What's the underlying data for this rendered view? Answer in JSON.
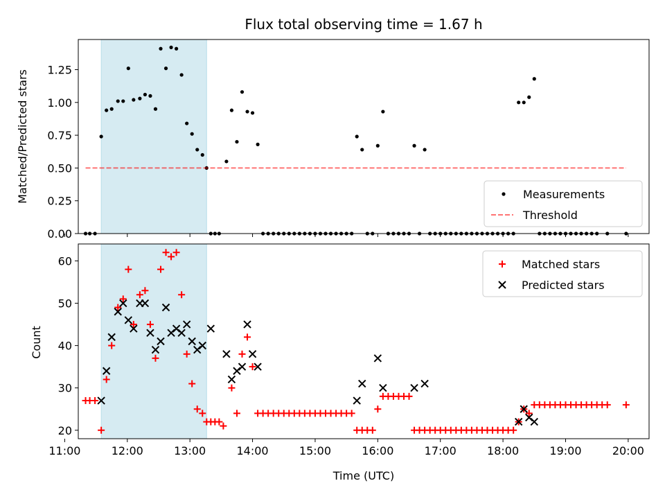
{
  "chart_data": [
    {
      "type": "scatter",
      "title": "Flux total observing time = 1.67 h",
      "xlabel": "",
      "ylabel": "Matched/Predicted stars",
      "xlim": [
        "11:13",
        "20:20"
      ],
      "ylim": [
        0,
        1.48
      ],
      "x_ticks": [
        "11:00",
        "12:00",
        "13:00",
        "14:00",
        "15:00",
        "16:00",
        "17:00",
        "18:00",
        "19:00",
        "20:00"
      ],
      "y_ticks": [
        "0.00",
        "0.25",
        "0.50",
        "0.75",
        "1.00",
        "1.25"
      ],
      "shaded_interval": {
        "x0": "11:35",
        "x1": "13:16",
        "color": "#add8e6"
      },
      "legend": {
        "position": "lower-right"
      },
      "series": [
        {
          "name": "Measurements",
          "color": "#000000",
          "marker": "dot",
          "points": [
            [
              "11:20",
              0
            ],
            [
              "11:24",
              0
            ],
            [
              "11:29",
              0
            ],
            [
              "11:35",
              0.74
            ],
            [
              "11:40",
              0.94
            ],
            [
              "11:45",
              0.95
            ],
            [
              "11:51",
              1.01
            ],
            [
              "11:56",
              1.01
            ],
            [
              "12:01",
              1.26
            ],
            [
              "12:06",
              1.02
            ],
            [
              "12:12",
              1.03
            ],
            [
              "12:17",
              1.06
            ],
            [
              "12:22",
              1.05
            ],
            [
              "12:27",
              0.95
            ],
            [
              "12:32",
              1.41
            ],
            [
              "12:37",
              1.26
            ],
            [
              "12:42",
              1.42
            ],
            [
              "12:47",
              1.41
            ],
            [
              "12:52",
              1.21
            ],
            [
              "12:57",
              0.84
            ],
            [
              "13:02",
              0.76
            ],
            [
              "13:07",
              0.64
            ],
            [
              "13:12",
              0.6
            ],
            [
              "13:16",
              0.5
            ],
            [
              "13:20",
              0
            ],
            [
              "13:24",
              0
            ],
            [
              "13:28",
              0
            ],
            [
              "13:35",
              0.55
            ],
            [
              "13:40",
              0.94
            ],
            [
              "13:45",
              0.7
            ],
            [
              "13:50",
              1.08
            ],
            [
              "13:55",
              0.93
            ],
            [
              "14:00",
              0.92
            ],
            [
              "14:05",
              0.68
            ],
            [
              "14:10",
              0
            ],
            [
              "14:15",
              0
            ],
            [
              "14:20",
              0
            ],
            [
              "14:25",
              0
            ],
            [
              "14:30",
              0
            ],
            [
              "14:35",
              0
            ],
            [
              "14:40",
              0
            ],
            [
              "14:45",
              0
            ],
            [
              "14:50",
              0
            ],
            [
              "14:55",
              0
            ],
            [
              "15:00",
              0
            ],
            [
              "15:05",
              0
            ],
            [
              "15:10",
              0
            ],
            [
              "15:15",
              0
            ],
            [
              "15:20",
              0
            ],
            [
              "15:25",
              0
            ],
            [
              "15:30",
              0
            ],
            [
              "15:35",
              0
            ],
            [
              "15:40",
              0.74
            ],
            [
              "15:45",
              0.64
            ],
            [
              "15:50",
              0
            ],
            [
              "15:55",
              0
            ],
            [
              "16:00",
              0.67
            ],
            [
              "16:05",
              0.93
            ],
            [
              "16:10",
              0
            ],
            [
              "16:15",
              0
            ],
            [
              "16:20",
              0
            ],
            [
              "16:25",
              0
            ],
            [
              "16:30",
              0
            ],
            [
              "16:35",
              0.67
            ],
            [
              "16:40",
              0
            ],
            [
              "16:45",
              0.64
            ],
            [
              "16:50",
              0
            ],
            [
              "16:55",
              0
            ],
            [
              "17:00",
              0
            ],
            [
              "17:05",
              0
            ],
            [
              "17:10",
              0
            ],
            [
              "17:15",
              0
            ],
            [
              "17:20",
              0
            ],
            [
              "17:25",
              0
            ],
            [
              "17:30",
              0
            ],
            [
              "17:35",
              0
            ],
            [
              "17:40",
              0
            ],
            [
              "17:45",
              0
            ],
            [
              "17:50",
              0
            ],
            [
              "17:55",
              0
            ],
            [
              "18:00",
              0
            ],
            [
              "18:05",
              0
            ],
            [
              "18:10",
              0
            ],
            [
              "18:15",
              1.0
            ],
            [
              "18:20",
              1.0
            ],
            [
              "18:25",
              1.04
            ],
            [
              "18:30",
              1.18
            ],
            [
              "18:35",
              0
            ],
            [
              "18:40",
              0
            ],
            [
              "18:45",
              0
            ],
            [
              "18:50",
              0
            ],
            [
              "18:55",
              0
            ],
            [
              "19:00",
              0
            ],
            [
              "19:05",
              0
            ],
            [
              "19:10",
              0
            ],
            [
              "19:15",
              0
            ],
            [
              "19:20",
              0
            ],
            [
              "19:25",
              0
            ],
            [
              "19:30",
              0
            ],
            [
              "19:40",
              0
            ],
            [
              "19:58",
              0
            ]
          ]
        },
        {
          "name": "Threshold",
          "color": "#ff0000",
          "line": "dashed",
          "points": [
            [
              "11:20",
              0.5
            ],
            [
              "19:58",
              0.5
            ]
          ]
        }
      ]
    },
    {
      "type": "scatter",
      "title": "",
      "xlabel": "Time (UTC)",
      "ylabel": "Count",
      "xlim": [
        "11:13",
        "20:20"
      ],
      "ylim": [
        18,
        64
      ],
      "x_ticks": [
        "11:00",
        "12:00",
        "13:00",
        "14:00",
        "15:00",
        "16:00",
        "17:00",
        "18:00",
        "19:00",
        "20:00"
      ],
      "y_ticks": [
        "20",
        "30",
        "40",
        "50",
        "60"
      ],
      "shaded_interval": {
        "x0": "11:35",
        "x1": "13:16",
        "color": "#add8e6"
      },
      "legend": {
        "position": "upper-right"
      },
      "series": [
        {
          "name": "Matched stars",
          "color": "#ff0000",
          "marker": "plus",
          "points": [
            [
              "11:20",
              27
            ],
            [
              "11:24",
              27
            ],
            [
              "11:29",
              27
            ],
            [
              "11:35",
              20
            ],
            [
              "11:40",
              32
            ],
            [
              "11:45",
              40
            ],
            [
              "11:51",
              49
            ],
            [
              "11:56",
              51
            ],
            [
              "12:01",
              58
            ],
            [
              "12:06",
              45
            ],
            [
              "12:12",
              52
            ],
            [
              "12:17",
              53
            ],
            [
              "12:22",
              45
            ],
            [
              "12:27",
              37
            ],
            [
              "12:32",
              58
            ],
            [
              "12:37",
              62
            ],
            [
              "12:42",
              61
            ],
            [
              "12:47",
              62
            ],
            [
              "12:52",
              52
            ],
            [
              "12:57",
              38
            ],
            [
              "13:02",
              31
            ],
            [
              "13:07",
              25
            ],
            [
              "13:12",
              24
            ],
            [
              "13:16",
              22
            ],
            [
              "13:20",
              22
            ],
            [
              "13:24",
              22
            ],
            [
              "13:28",
              22
            ],
            [
              "13:32",
              21
            ],
            [
              "13:40",
              30
            ],
            [
              "13:45",
              24
            ],
            [
              "13:50",
              38
            ],
            [
              "13:55",
              42
            ],
            [
              "14:00",
              35
            ],
            [
              "14:05",
              24
            ],
            [
              "14:10",
              24
            ],
            [
              "14:15",
              24
            ],
            [
              "14:20",
              24
            ],
            [
              "14:25",
              24
            ],
            [
              "14:30",
              24
            ],
            [
              "14:35",
              24
            ],
            [
              "14:40",
              24
            ],
            [
              "14:45",
              24
            ],
            [
              "14:50",
              24
            ],
            [
              "14:55",
              24
            ],
            [
              "15:00",
              24
            ],
            [
              "15:05",
              24
            ],
            [
              "15:10",
              24
            ],
            [
              "15:15",
              24
            ],
            [
              "15:20",
              24
            ],
            [
              "15:25",
              24
            ],
            [
              "15:30",
              24
            ],
            [
              "15:35",
              24
            ],
            [
              "15:40",
              20
            ],
            [
              "15:45",
              20
            ],
            [
              "15:50",
              20
            ],
            [
              "15:55",
              20
            ],
            [
              "16:00",
              25
            ],
            [
              "16:05",
              28
            ],
            [
              "16:10",
              28
            ],
            [
              "16:15",
              28
            ],
            [
              "16:20",
              28
            ],
            [
              "16:25",
              28
            ],
            [
              "16:30",
              28
            ],
            [
              "16:35",
              20
            ],
            [
              "16:40",
              20
            ],
            [
              "16:45",
              20
            ],
            [
              "16:50",
              20
            ],
            [
              "16:55",
              20
            ],
            [
              "17:00",
              20
            ],
            [
              "17:05",
              20
            ],
            [
              "17:10",
              20
            ],
            [
              "17:15",
              20
            ],
            [
              "17:20",
              20
            ],
            [
              "17:25",
              20
            ],
            [
              "17:30",
              20
            ],
            [
              "17:35",
              20
            ],
            [
              "17:40",
              20
            ],
            [
              "17:45",
              20
            ],
            [
              "17:50",
              20
            ],
            [
              "17:55",
              20
            ],
            [
              "18:00",
              20
            ],
            [
              "18:05",
              20
            ],
            [
              "18:10",
              20
            ],
            [
              "18:15",
              22
            ],
            [
              "18:20",
              25
            ],
            [
              "18:25",
              24
            ],
            [
              "18:30",
              26
            ],
            [
              "18:35",
              26
            ],
            [
              "18:40",
              26
            ],
            [
              "18:45",
              26
            ],
            [
              "18:50",
              26
            ],
            [
              "18:55",
              26
            ],
            [
              "19:00",
              26
            ],
            [
              "19:05",
              26
            ],
            [
              "19:10",
              26
            ],
            [
              "19:15",
              26
            ],
            [
              "19:20",
              26
            ],
            [
              "19:25",
              26
            ],
            [
              "19:30",
              26
            ],
            [
              "19:35",
              26
            ],
            [
              "19:40",
              26
            ],
            [
              "19:58",
              26
            ]
          ]
        },
        {
          "name": "Predicted stars",
          "color": "#000000",
          "marker": "x",
          "points": [
            [
              "11:35",
              27
            ],
            [
              "11:40",
              34
            ],
            [
              "11:45",
              42
            ],
            [
              "11:51",
              48
            ],
            [
              "11:56",
              50
            ],
            [
              "12:01",
              46
            ],
            [
              "12:06",
              44
            ],
            [
              "12:12",
              50
            ],
            [
              "12:17",
              50
            ],
            [
              "12:22",
              43
            ],
            [
              "12:27",
              39
            ],
            [
              "12:32",
              41
            ],
            [
              "12:37",
              49
            ],
            [
              "12:42",
              43
            ],
            [
              "12:47",
              44
            ],
            [
              "12:52",
              43
            ],
            [
              "12:57",
              45
            ],
            [
              "13:02",
              41
            ],
            [
              "13:07",
              39
            ],
            [
              "13:12",
              40
            ],
            [
              "13:20",
              44
            ],
            [
              "13:35",
              38
            ],
            [
              "13:40",
              32
            ],
            [
              "13:45",
              34
            ],
            [
              "13:50",
              35
            ],
            [
              "13:55",
              45
            ],
            [
              "14:00",
              38
            ],
            [
              "14:05",
              35
            ],
            [
              "15:40",
              27
            ],
            [
              "15:45",
              31
            ],
            [
              "16:00",
              37
            ],
            [
              "16:05",
              30
            ],
            [
              "16:35",
              30
            ],
            [
              "16:45",
              31
            ],
            [
              "18:15",
              22
            ],
            [
              "18:20",
              25
            ],
            [
              "18:25",
              23
            ],
            [
              "18:30",
              22
            ]
          ]
        }
      ]
    }
  ]
}
